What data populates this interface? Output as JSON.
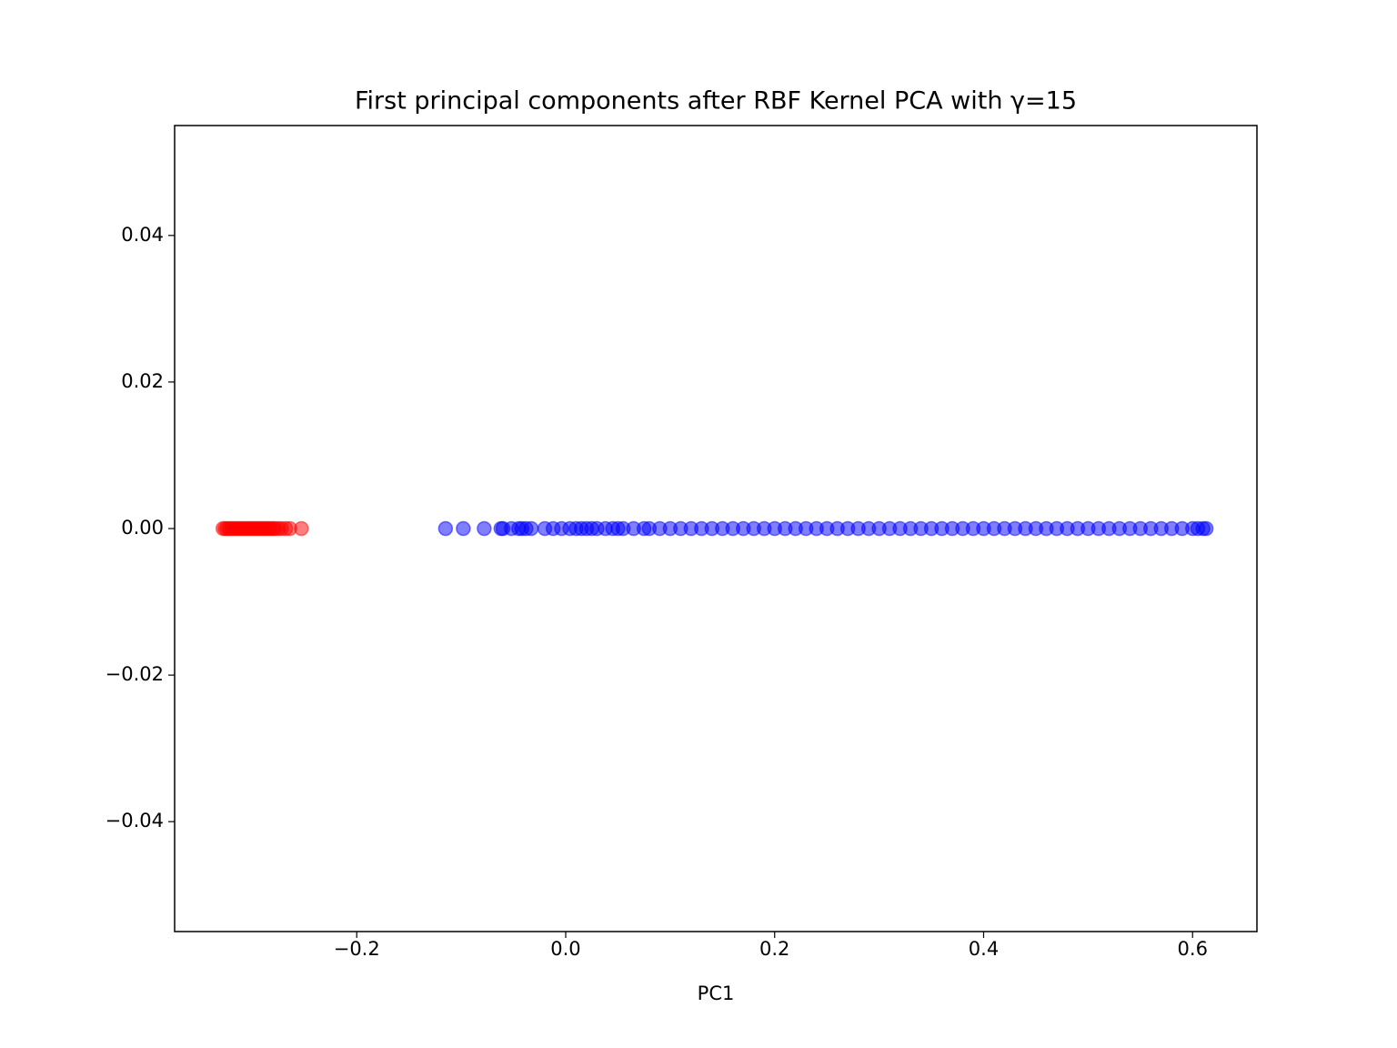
{
  "chart_data": {
    "type": "scatter",
    "title": "First principal components after RBF Kernel PCA with γ=15",
    "x_label": "PC1",
    "xlim": [
      -0.3743,
      0.6616
    ],
    "ylim": [
      -0.055,
      0.055
    ],
    "xticks": [
      {
        "value": -0.2,
        "label": "−0.2"
      },
      {
        "value": 0,
        "label": "0.0"
      },
      0.2,
      0.4,
      0.6
    ],
    "yticks": [
      {
        "value": -0.04,
        "label": "−0.04"
      },
      {
        "value": -0.02,
        "label": "−0.02"
      },
      {
        "value": 0,
        "label": "0.00"
      },
      0.02,
      0.04
    ],
    "grid": false,
    "alpha": 0.5,
    "series": [
      {
        "color": "#ff0000",
        "x": [
          -0.328,
          -0.326,
          -0.324,
          -0.322,
          -0.32,
          -0.318,
          -0.316,
          -0.314,
          -0.312,
          -0.31,
          -0.308,
          -0.306,
          -0.304,
          -0.302,
          -0.3,
          -0.298,
          -0.296,
          -0.294,
          -0.292,
          -0.29,
          -0.288,
          -0.286,
          -0.284,
          -0.282,
          -0.28,
          -0.278,
          -0.275,
          -0.272,
          -0.268,
          -0.264,
          -0.253
        ],
        "y": [
          0,
          0,
          0,
          0,
          0,
          0,
          0,
          0,
          0,
          0,
          0,
          0,
          0,
          0,
          0,
          0,
          0,
          0,
          0,
          0,
          0,
          0,
          0,
          0,
          0,
          0,
          0,
          0,
          0,
          0,
          0
        ]
      },
      {
        "color": "#0000ff",
        "x": [
          -0.115,
          -0.098,
          -0.078,
          -0.062,
          -0.06,
          -0.052,
          -0.045,
          -0.042,
          -0.038,
          -0.033,
          -0.02,
          -0.012,
          -0.004,
          0.004,
          0.01,
          0.015,
          0.02,
          0.025,
          0.03,
          0.038,
          0.045,
          0.05,
          0.055,
          0.065,
          0.075,
          0.08,
          0.09,
          0.1,
          0.11,
          0.12,
          0.13,
          0.14,
          0.15,
          0.16,
          0.17,
          0.18,
          0.19,
          0.2,
          0.21,
          0.22,
          0.23,
          0.24,
          0.25,
          0.26,
          0.27,
          0.28,
          0.29,
          0.3,
          0.31,
          0.32,
          0.33,
          0.34,
          0.35,
          0.36,
          0.37,
          0.38,
          0.39,
          0.4,
          0.41,
          0.42,
          0.43,
          0.44,
          0.45,
          0.46,
          0.47,
          0.48,
          0.49,
          0.5,
          0.51,
          0.52,
          0.53,
          0.54,
          0.55,
          0.56,
          0.57,
          0.58,
          0.59,
          0.6,
          0.605,
          0.61,
          0.613
        ],
        "y": [
          0,
          0,
          0,
          0,
          0,
          0,
          0,
          0,
          0,
          0,
          0,
          0,
          0,
          0,
          0,
          0,
          0,
          0,
          0,
          0,
          0,
          0,
          0,
          0,
          0,
          0,
          0,
          0,
          0,
          0,
          0,
          0,
          0,
          0,
          0,
          0,
          0,
          0,
          0,
          0,
          0,
          0,
          0,
          0,
          0,
          0,
          0,
          0,
          0,
          0,
          0,
          0,
          0,
          0,
          0,
          0,
          0,
          0,
          0,
          0,
          0,
          0,
          0,
          0,
          0,
          0,
          0,
          0,
          0,
          0,
          0,
          0,
          0,
          0,
          0,
          0,
          0,
          0,
          0,
          0,
          0
        ]
      }
    ]
  }
}
